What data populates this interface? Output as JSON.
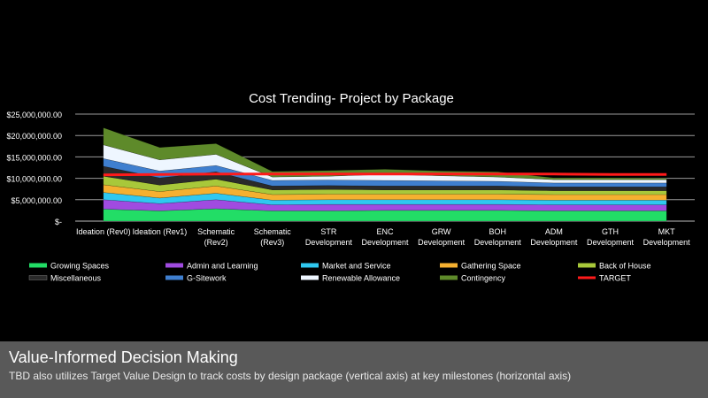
{
  "chart_data": {
    "type": "area",
    "title": "Cost Trending- Project by Package",
    "y_ticks": [
      "$25,000,000.00",
      "$20,000,000.00",
      "$15,000,000.00",
      "$10,000,000.00",
      "$5,000,000.00",
      "$-"
    ],
    "ylim": [
      0,
      25000000
    ],
    "grid": true,
    "legend_position": "bottom",
    "categories": [
      "Ideation (Rev0)",
      "Ideation (Rev1)",
      "Schematic (Rev2)",
      "Schematic (Rev3)",
      "STR Development",
      "ENC Development",
      "GRW Development",
      "BOH Development",
      "ADM Development",
      "GTH Development",
      "MKT Development"
    ],
    "series": [
      {
        "name": "Growing Spaces",
        "color": "#22dd66",
        "values": [
          2800000,
          2400000,
          2900000,
          2400000,
          2400000,
          2500000,
          2500000,
          2500000,
          2400000,
          2400000,
          2400000
        ]
      },
      {
        "name": "Admin and Learning",
        "color": "#a04be0",
        "values": [
          2200000,
          1700000,
          2100000,
          1400000,
          1500000,
          1400000,
          1400000,
          1400000,
          1400000,
          1400000,
          1400000
        ]
      },
      {
        "name": "Market and Service",
        "color": "#2fc8f0",
        "values": [
          1700000,
          1300000,
          1500000,
          1100000,
          1100000,
          1100000,
          1100000,
          1100000,
          1100000,
          1100000,
          1100000
        ]
      },
      {
        "name": "Gathering Space",
        "color": "#f5b030",
        "values": [
          1800000,
          1500000,
          1700000,
          1300000,
          1300000,
          1300000,
          1300000,
          1300000,
          1300000,
          1300000,
          1300000
        ]
      },
      {
        "name": "Back of House",
        "color": "#a8c83a",
        "values": [
          2000000,
          1500000,
          1600000,
          1100000,
          1100000,
          1000000,
          1000000,
          1000000,
          900000,
          900000,
          900000
        ]
      },
      {
        "name": "Miscellaneous",
        "color": "#2a2a2a",
        "values": [
          2300000,
          1700000,
          1700000,
          900000,
          900000,
          900000,
          900000,
          900000,
          900000,
          900000,
          900000
        ]
      },
      {
        "name": "G-Sitework",
        "color": "#3f7fcf",
        "values": [
          1800000,
          1600000,
          1500000,
          1300000,
          1300000,
          1300000,
          1200000,
          1100000,
          900000,
          900000,
          900000
        ]
      },
      {
        "name": "Renewable Allowance",
        "color": "#eef6ff",
        "values": [
          3200000,
          2600000,
          2600000,
          800000,
          900000,
          1400000,
          1200000,
          1000000,
          800000,
          800000,
          800000
        ]
      },
      {
        "name": "Contingency",
        "color": "#5e8a2a",
        "values": [
          4000000,
          2900000,
          2500000,
          1300000,
          1300000,
          1200000,
          1100000,
          1200000,
          400000,
          400000,
          300000
        ]
      }
    ],
    "target": {
      "name": "TARGET",
      "color": "#ff1a1a",
      "values": [
        10800000,
        10900000,
        11000000,
        11000000,
        11000000,
        11000000,
        11000000,
        11000000,
        11000000,
        10900000,
        10900000
      ]
    }
  },
  "caption": {
    "title": "Value-Informed  Decision  Making",
    "description": "TBD also utilizes Target Value Design to track costs by design package (vertical axis) at key milestones (horizontal axis)"
  }
}
